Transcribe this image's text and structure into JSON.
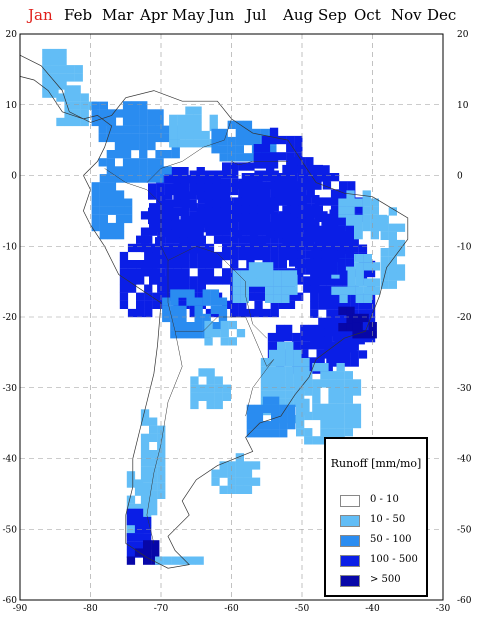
{
  "months": [
    {
      "label": "Jan",
      "active": true
    },
    {
      "label": "Feb",
      "active": false
    },
    {
      "label": "Mar",
      "active": false
    },
    {
      "label": "Apr",
      "active": false
    },
    {
      "label": "May",
      "active": false
    },
    {
      "label": "Jun",
      "active": false
    },
    {
      "label": "Jul",
      "active": false
    },
    {
      "label": "Aug",
      "active": false
    },
    {
      "label": "Sep",
      "active": false
    },
    {
      "label": "Oct",
      "active": false
    },
    {
      "label": "Nov",
      "active": false
    },
    {
      "label": "Dec",
      "active": false
    }
  ],
  "colors": {
    "active_month": "#e0201b",
    "class_0_10": "#ffffff",
    "class_10_50": "#62bdf6",
    "class_50_100": "#2a8cf0",
    "class_100_500": "#0a1ee6",
    "class_gt_500": "#0707a8",
    "coast": "#333333",
    "grid": "#999999"
  },
  "map": {
    "lon_ticks": [
      -90,
      -80,
      -70,
      -60,
      -50,
      -40,
      -30
    ],
    "lat_ticks": [
      20,
      10,
      0,
      -10,
      -20,
      -30,
      -40,
      -50,
      -60
    ],
    "lon_range": [
      -90,
      -30
    ],
    "lat_range": [
      -60,
      20
    ]
  },
  "legend": {
    "title": "Runoff [mm/mo]",
    "items": [
      {
        "label": "0  -  10",
        "color": "#ffffff"
      },
      {
        "label": "10  -  50",
        "color": "#62bdf6"
      },
      {
        "label": "50  -  100",
        "color": "#2a8cf0"
      },
      {
        "label": "100  -  500",
        "color": "#0a1ee6"
      },
      {
        "label": ">  500",
        "color": "#0707a8"
      }
    ]
  }
}
